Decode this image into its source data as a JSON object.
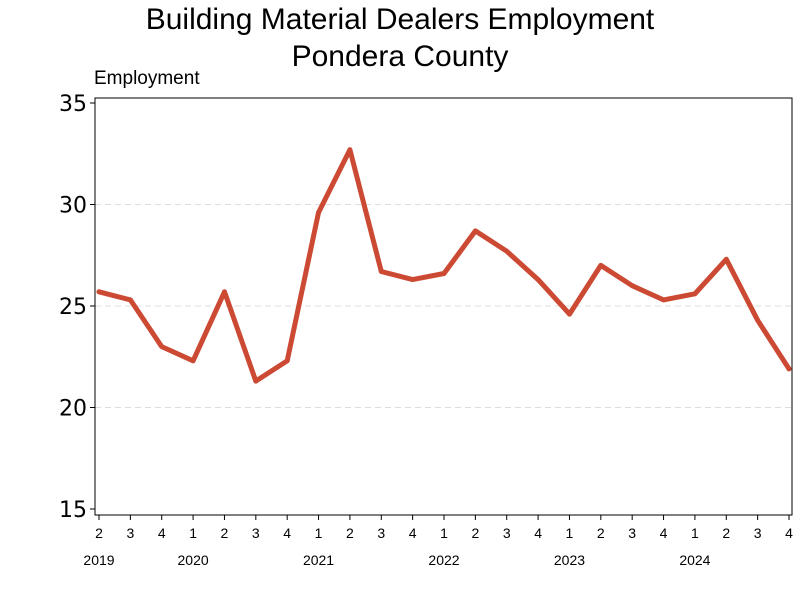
{
  "chart_data": {
    "type": "line",
    "title": "Building Material Dealers Employment",
    "subtitle": "Pondera County",
    "ylabel": "Employment",
    "xlabel": "",
    "ylim": [
      15,
      35
    ],
    "yticks": [
      15,
      20,
      25,
      30,
      35
    ],
    "grid": "horizontal dashed",
    "line_color": "#cc4a33",
    "quarter_labels": [
      "2",
      "3",
      "4",
      "1",
      "2",
      "3",
      "4",
      "1",
      "2",
      "3",
      "4",
      "1",
      "2",
      "3",
      "4",
      "1",
      "2",
      "3",
      "4",
      "1",
      "2",
      "3",
      "4"
    ],
    "year_labels": [
      {
        "label": "2019",
        "index": 0
      },
      {
        "label": "2020",
        "index": 3
      },
      {
        "label": "2021",
        "index": 7
      },
      {
        "label": "2022",
        "index": 11
      },
      {
        "label": "2023",
        "index": 15
      },
      {
        "label": "2024",
        "index": 19
      }
    ],
    "series": [
      {
        "values": [
          25.7,
          25.3,
          23.0,
          22.3,
          25.7,
          21.3,
          22.3,
          29.6,
          32.7,
          26.7,
          26.3,
          26.6,
          28.7,
          27.7,
          26.3,
          24.6,
          27.0,
          26.0,
          25.3,
          25.6,
          27.3,
          24.3,
          21.9
        ]
      }
    ]
  }
}
